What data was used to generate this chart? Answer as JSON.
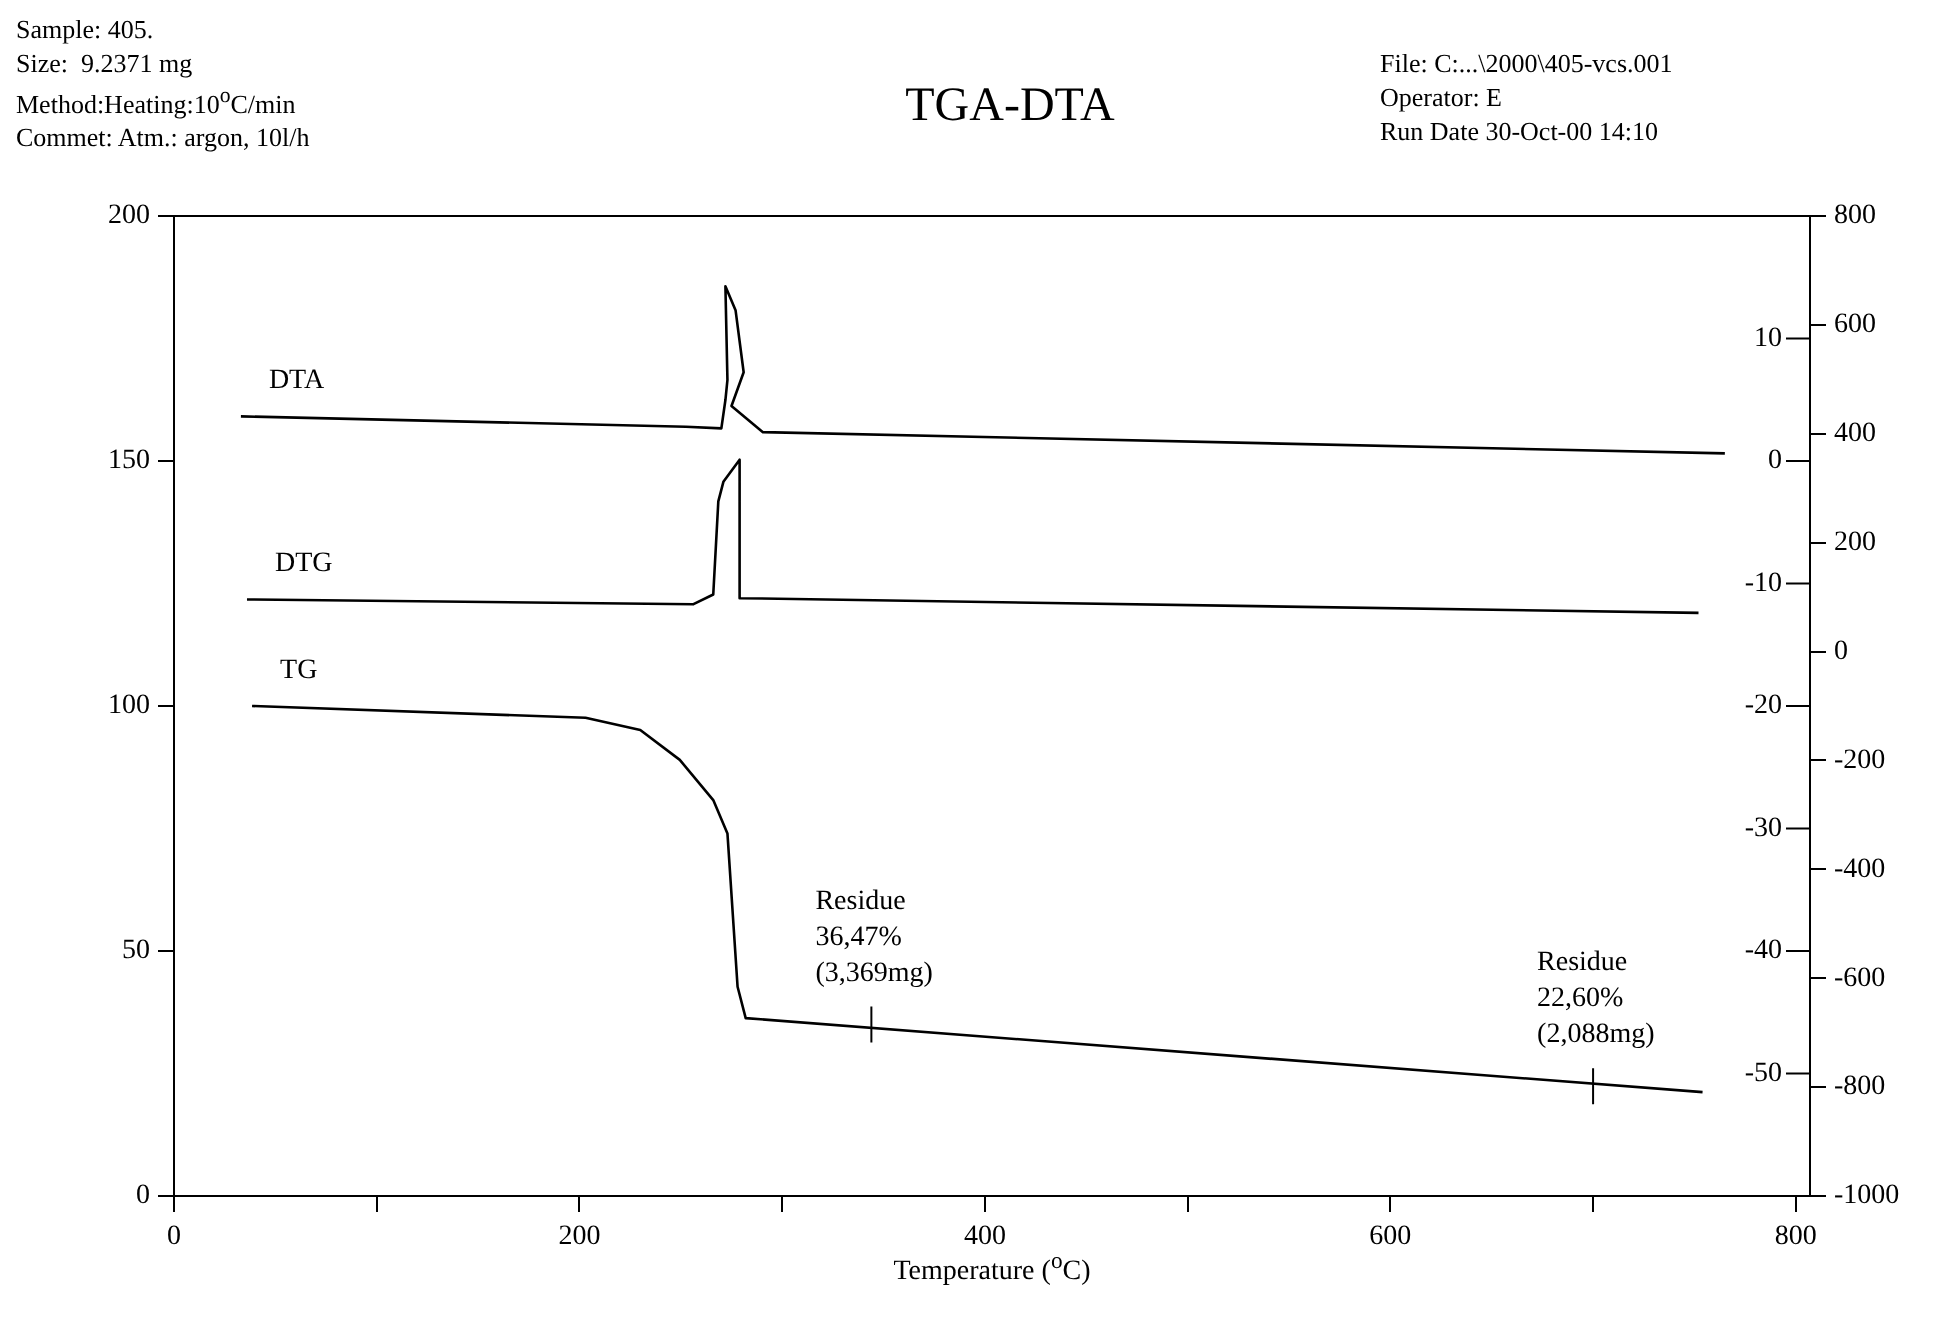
{
  "chart_data": {
    "type": "line",
    "title": "TGA-DTA",
    "xlabel": "Temperature ($^{o}$C)",
    "annotations": [
      "Sample: 405.\nSize:  9.2371 mg\nMethod:Heating:10$^{o}$C/min\nCommet: Atm.: argon, 10l/h",
      "File: C:...\\2000\\405-vcs.001\nOperator: E\nRun Date 30-Oct-00 14:10",
      {
        "text": "Residue\n36,47%\n(3,369mg)",
        "x": 344,
        "y": 35
      },
      {
        "text": "Residue\n22,60%\n(2,088mg)",
        "x": 700,
        "y": 22.4
      }
    ],
    "xlim": [
      0,
      807
    ],
    "xticks": [
      0,
      {
        "value": 100,
        "label": null
      },
      200,
      {
        "value": 300,
        "label": null
      },
      400,
      {
        "value": 500,
        "label": null
      },
      600,
      {
        "value": 700,
        "label": null
      },
      800
    ],
    "ylim": [
      0,
      200
    ],
    "yticks": [
      0,
      50,
      100,
      150,
      200
    ],
    "y2lim": [
      -1000,
      800
    ],
    "y2ticks": [
      -1000,
      -800,
      -600,
      -400,
      -200,
      0,
      200,
      400,
      600,
      800
    ],
    "y3lim": [
      -60,
      20
    ],
    "y3ticks": [
      -50,
      -40,
      -30,
      -20,
      -10,
      0,
      10
    ],
    "grid": false,
    "legend": false,
    "marker": "none",
    "line_style": "solid",
    "series": [
      {
        "name": "DTA",
        "color": "#000000",
        "axis": "y2",
        "x": [
          33,
          252.5,
          270,
          272,
          273,
          272,
          277,
          281,
          275,
          290.5,
          765
        ],
        "values": [
          432,
          413,
          410,
          462,
          499,
          671,
          627,
          513,
          451,
          403,
          364
        ]
      },
      {
        "name": "DTG",
        "color": "#000000",
        "axis": "y3",
        "x": [
          36,
          256,
          266,
          268.5,
          271,
          279,
          279,
          752
        ],
        "values": [
          -11.3,
          -11.7,
          -10.9,
          -3.3,
          -1.7,
          0.1,
          -11.2,
          -12.4
        ]
      },
      {
        "name": "TG",
        "color": "#000000",
        "x": [
          38.5,
          203,
          230,
          249.5,
          266,
          273,
          278,
          282,
          754
        ],
        "values": [
          100,
          97.6,
          95.1,
          89,
          80.8,
          74,
          42.7,
          36.3,
          21.2
        ]
      }
    ]
  }
}
